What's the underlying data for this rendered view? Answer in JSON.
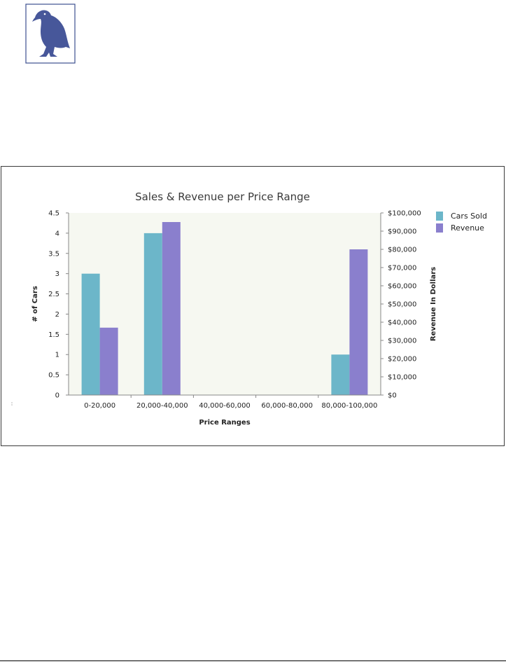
{
  "chart_data": {
    "type": "bar",
    "title": "Sales & Revenue per Price Range",
    "xlabel": "Price Ranges",
    "ylabel": "# of Cars",
    "y2label": "Revenue In Dollars",
    "categories": [
      "0-20,000",
      "20,000-40,000",
      "40,000-60,000",
      "60,000-80,000",
      "80,000-100,000"
    ],
    "series": [
      {
        "name": "Cars Sold",
        "axis": "left",
        "color": "#6cb6c9",
        "values": [
          3,
          4,
          0,
          0,
          1
        ]
      },
      {
        "name": "Revenue",
        "axis": "right",
        "color": "#8a7fcd",
        "values": [
          37000,
          95000,
          0,
          0,
          80000
        ]
      }
    ],
    "ylim": [
      0,
      4.5
    ],
    "y_ticks": [
      "0",
      "0.5",
      "1",
      "1.5",
      "2",
      "2.5",
      "3",
      "3.5",
      "4",
      "4.5"
    ],
    "y2lim": [
      0,
      100000
    ],
    "y2_ticks": [
      "$0",
      "$10,000",
      "$20,000",
      "$30,000",
      "$40,000",
      "$50,000",
      "$60,000",
      "$70,000",
      "$80,000",
      "$90,000",
      "$100,000"
    ],
    "grid": false,
    "legend_position": "top-right",
    "plot_background": "#f6f8f1"
  }
}
